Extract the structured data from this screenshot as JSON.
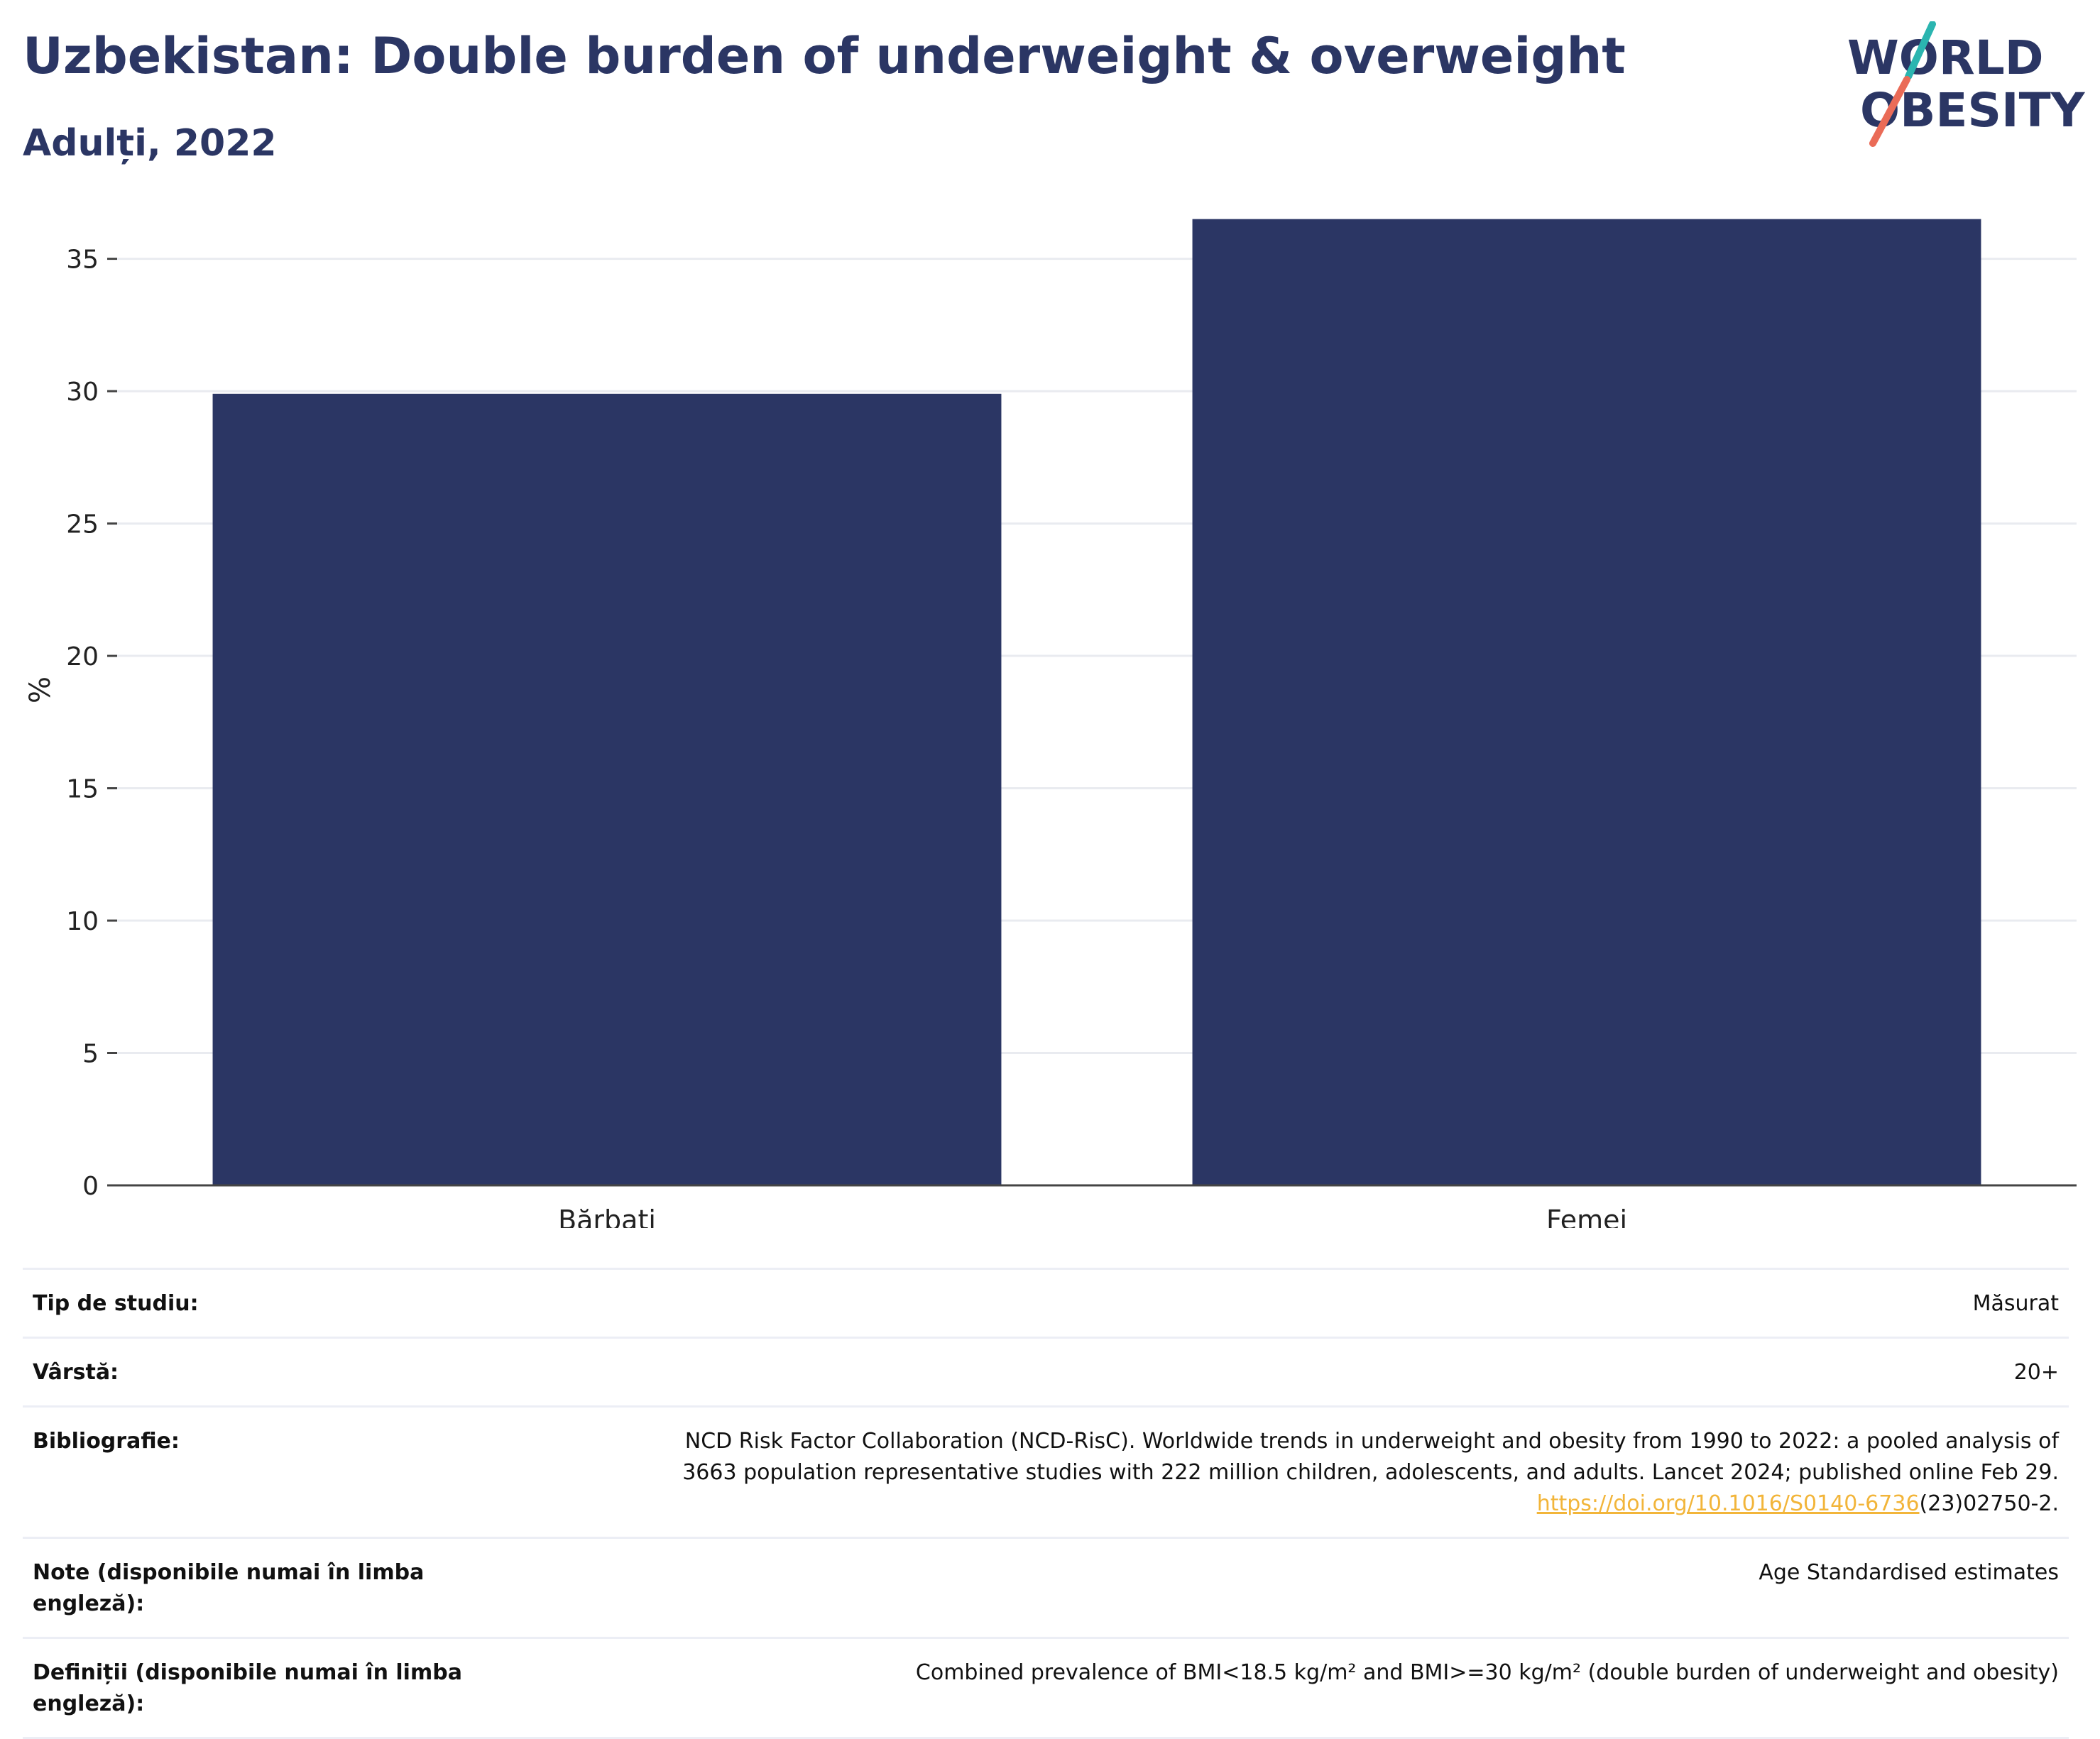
{
  "header": {
    "title": "Uzbekistan: Double burden of underweight & overweight",
    "subtitle": "Adulți, 2022",
    "logo_text": [
      "WORLD",
      "OBESITY"
    ]
  },
  "colors": {
    "bar": "#2b3664",
    "title": "#2b3664",
    "grid": "#e9ebf0",
    "logo_teal": "#2bb5b0",
    "logo_coral": "#ea6b57",
    "link": "#f2b53a"
  },
  "chart_data": {
    "type": "bar",
    "categories": [
      "Bărbați",
      "Femei"
    ],
    "values": [
      29.9,
      36.5
    ],
    "ylabel": "%",
    "ylim": [
      0,
      37
    ],
    "yticks": [
      0,
      5,
      10,
      15,
      20,
      25,
      30,
      35
    ],
    "grid": true,
    "legend": "none"
  },
  "info": {
    "study_type": {
      "label": "Tip de studiu:",
      "value": "Măsurat"
    },
    "age": {
      "label": "Vârstă:",
      "value": "20+"
    },
    "bibliography": {
      "label": "Bibliografie:",
      "line1": "NCD Risk Factor Collaboration (NCD-RisC). Worldwide trends in underweight and obesity from 1990 to 2022: a pooled analysis of",
      "line2": "3663 population representative studies with 222 million children, adolescents, and adults. Lancet 2024; published online Feb 29.",
      "link": "https://doi.org/10.1016/S0140-6736",
      "link_suffix": "(23)02750-2."
    },
    "notes": {
      "label": "Note (disponibile numai în limba engleză):",
      "value": "Age Standardised estimates"
    },
    "definitions": {
      "label": "Definiții (disponibile numai în limba engleză):",
      "value": "Combined prevalence of BMI<18.5 kg/m² and BMI>=30 kg/m² (double burden of underweight and obesity)"
    }
  }
}
